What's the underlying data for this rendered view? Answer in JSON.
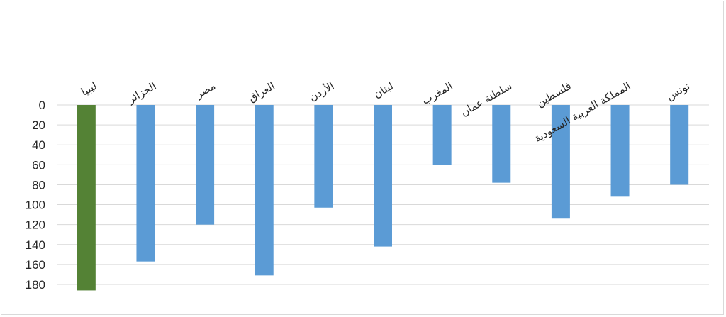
{
  "chart_data": {
    "type": "bar",
    "orientation": "vertical",
    "y_axis_reversed": true,
    "categories": [
      "ليبيا",
      "الجزائر",
      "مصر",
      "العراق",
      "الأردن",
      "لبنان",
      "المغرب",
      "سلطنة عمان",
      "فلسطين",
      "المملكة العربية السعودية",
      "تونس"
    ],
    "values": [
      186,
      157,
      120,
      171,
      103,
      142,
      60,
      78,
      114,
      92,
      80
    ],
    "colors": [
      "#548235",
      "#5b9bd5",
      "#5b9bd5",
      "#5b9bd5",
      "#5b9bd5",
      "#5b9bd5",
      "#5b9bd5",
      "#5b9bd5",
      "#5b9bd5",
      "#5b9bd5",
      "#5b9bd5"
    ],
    "highlight_color": "#548235",
    "bar_color": "#5b9bd5",
    "ylim": [
      0,
      180
    ],
    "yticks": [
      0,
      20,
      40,
      60,
      80,
      100,
      120,
      140,
      160,
      180
    ],
    "grid": true,
    "title": "",
    "xlabel": "",
    "ylabel": ""
  }
}
